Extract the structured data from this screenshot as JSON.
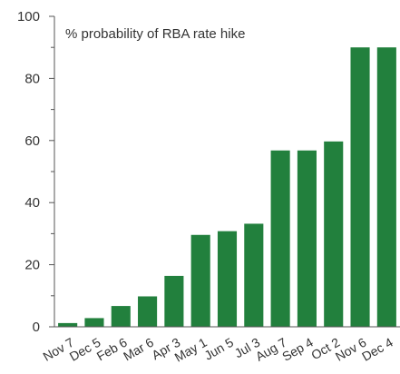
{
  "chart_data": {
    "type": "bar",
    "annotation": "% probability of RBA rate hike",
    "categories": [
      "Nov 7",
      "Dec 5",
      "Feb 6",
      "Mar 6",
      "Apr 3",
      "May 1",
      "Jun 5",
      "Jul 3",
      "Aug 7",
      "Sep 4",
      "Oct 2",
      "Nov 6",
      "Dec 4"
    ],
    "values": [
      1.2,
      2.8,
      6.7,
      9.8,
      16.4,
      29.6,
      30.8,
      33.2,
      56.8,
      56.8,
      59.7,
      90,
      90
    ],
    "yticks": [
      0,
      20,
      40,
      60,
      80,
      100
    ],
    "ylim": [
      0,
      100
    ],
    "grid": false,
    "bar_color": "#22803d"
  }
}
